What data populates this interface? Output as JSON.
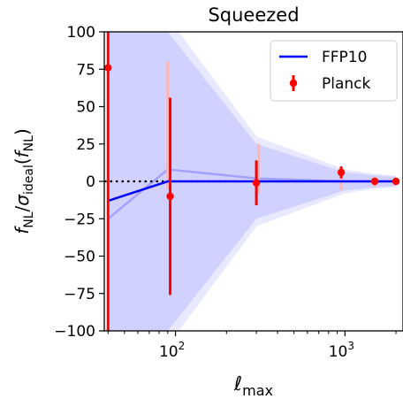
{
  "chart_data": {
    "type": "line",
    "title": "Squeezed",
    "xlabel": "ℓ_max",
    "ylabel": "f_NL/σ_ideal(f_NL)",
    "xscale": "log",
    "xlim": [
      38,
      2200
    ],
    "ylim": [
      -100,
      100
    ],
    "yticks": [
      -100,
      -75,
      -50,
      -25,
      0,
      25,
      50,
      75,
      100
    ],
    "xticks": [
      {
        "value": 100,
        "base": "10",
        "exp": "2"
      },
      {
        "value": 1000,
        "base": "10",
        "exp": "3"
      }
    ],
    "legend": {
      "position": "top-right",
      "entries": [
        {
          "name": "FFP10",
          "kind": "line",
          "color": "#0000ff"
        },
        {
          "name": "Planck",
          "kind": "errorbar",
          "color": "#ff0000"
        }
      ]
    },
    "reference_line": {
      "y": 0,
      "x_range": [
        38,
        200
      ],
      "style": "dotted",
      "color": "#000000"
    },
    "series": [
      {
        "name": "FFP10",
        "color": "#0000ff",
        "x": [
          40,
          90,
          300,
          1000,
          1500,
          2000
        ],
        "y": [
          -13,
          0,
          0,
          0,
          0,
          0
        ]
      },
      {
        "name": "Planck",
        "color": "#ff0000",
        "x": [
          40,
          93,
          300,
          950,
          1500,
          2000
        ],
        "y": [
          76,
          -10,
          -1,
          6,
          0,
          0
        ],
        "err": [
          180,
          66,
          15,
          4,
          2,
          1.5
        ]
      }
    ],
    "shaded_bands": {
      "color": "#8080ff",
      "x": [
        40,
        90,
        300,
        1000,
        1500,
        2000
      ],
      "outer_low": [
        -140,
        -110,
        -30,
        -8,
        -5,
        -4
      ],
      "outer_high": [
        140,
        110,
        30,
        8,
        5,
        4
      ],
      "inner_low": [
        -120,
        -100,
        -25,
        -6,
        -4,
        -3
      ],
      "inner_high": [
        120,
        100,
        25,
        6,
        4,
        3
      ]
    },
    "faint_series": {
      "color": "#9090ff",
      "x": [
        40,
        90,
        300,
        1000
      ],
      "y": [
        -25,
        8,
        2,
        0
      ]
    },
    "faint_errorbars": {
      "color": "#ffb3b3",
      "x": [
        90,
        310,
        950,
        1500
      ],
      "y": [
        0,
        0,
        0,
        0
      ],
      "low": [
        -5,
        -8,
        -6,
        -4
      ],
      "high": [
        80,
        25,
        10,
        3
      ]
    }
  }
}
